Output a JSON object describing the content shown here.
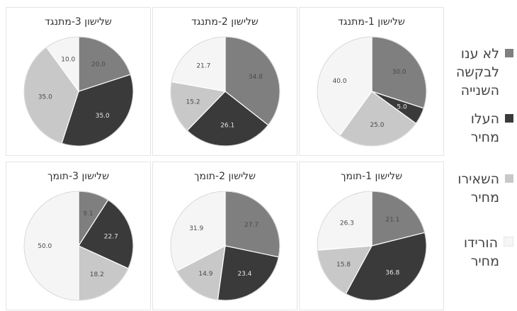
{
  "colors": {
    "no_answer": "#7f7f7f",
    "raised": "#3a3a3a",
    "kept": "#c8c8c8",
    "lowered": "#f5f5f5"
  },
  "legend": [
    {
      "key": "no_answer",
      "lines": [
        "לא ענו",
        "לבקשה",
        "השנייה"
      ]
    },
    {
      "key": "raised",
      "lines": [
        "העלו",
        "מחיר"
      ]
    },
    {
      "key": "kept",
      "lines": [
        "השאירו",
        "מחיר"
      ]
    },
    {
      "key": "lowered",
      "lines": [
        "הורידו",
        "מחיר"
      ]
    }
  ],
  "chart_data": [
    {
      "type": "pie",
      "title": "שלישון 1-מתנגד",
      "values": [
        30.0,
        5.0,
        25.0,
        40.0
      ],
      "labels": [
        "30.0",
        "5.0",
        "25.0",
        "40.0"
      ]
    },
    {
      "type": "pie",
      "title": "שלישון 2-מתנגד",
      "values": [
        34.8,
        26.1,
        15.2,
        21.7
      ],
      "labels": [
        "34.8",
        "26.1",
        "15.2",
        "21.7"
      ]
    },
    {
      "type": "pie",
      "title": "שלישון 3-מתנגד",
      "values": [
        20.0,
        35.0,
        35.0,
        10.0
      ],
      "labels": [
        "20.0",
        "35.0",
        "35.0",
        "10.0"
      ]
    },
    {
      "type": "pie",
      "title": "שלישון 1-תומך",
      "values": [
        21.1,
        36.8,
        15.8,
        26.3
      ],
      "labels": [
        "21.1",
        "36.8",
        "15.8",
        "26.3"
      ]
    },
    {
      "type": "pie",
      "title": "שלישון 2-תומך",
      "values": [
        27.7,
        23.4,
        14.9,
        31.9
      ],
      "labels": [
        "27.7",
        "23.4",
        "14.9",
        "31.9"
      ]
    },
    {
      "type": "pie",
      "title": "שלישון 3-תומך",
      "values": [
        9.1,
        22.7,
        18.2,
        50.0
      ],
      "labels": [
        "9.1",
        "22.7",
        "18.2",
        "50.0"
      ]
    }
  ],
  "series_order": [
    "no_answer",
    "raised",
    "kept",
    "lowered"
  ]
}
